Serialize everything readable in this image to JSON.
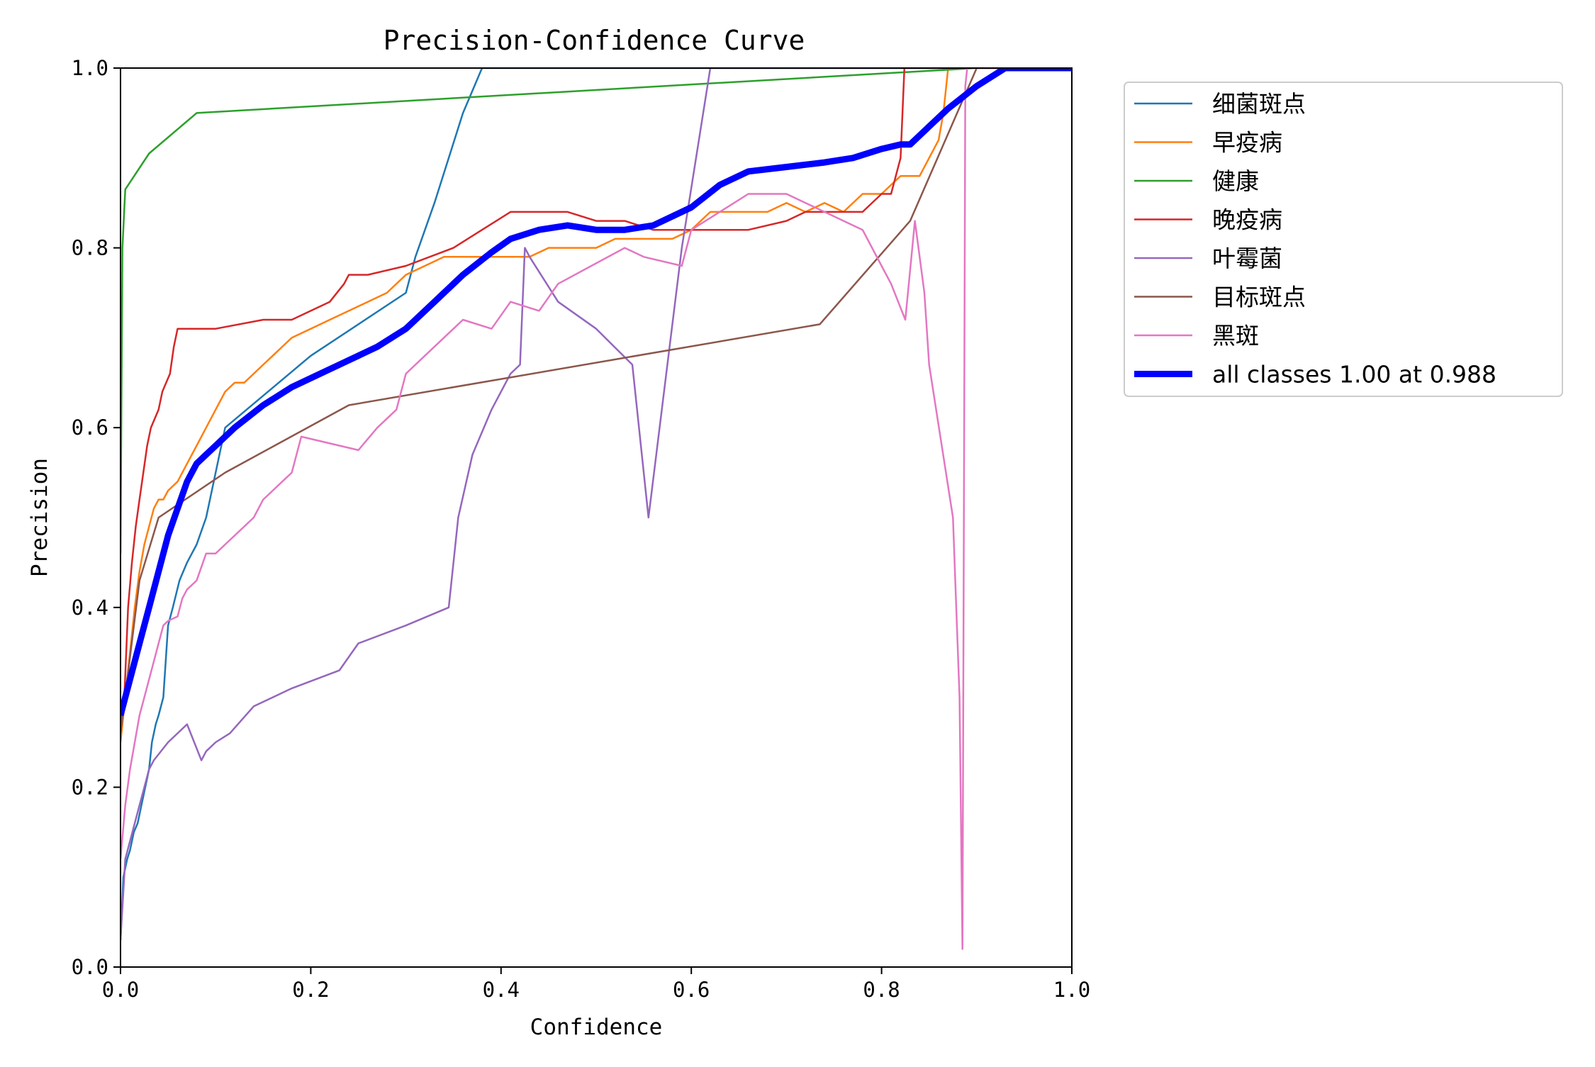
{
  "chart_data": {
    "type": "line",
    "title": "Precision-Confidence Curve",
    "xlabel": "Confidence",
    "ylabel": "Precision",
    "xlim": [
      0,
      1
    ],
    "ylim": [
      0,
      1
    ],
    "xticks": [
      "0.0",
      "0.2",
      "0.4",
      "0.6",
      "0.8",
      "1.0"
    ],
    "yticks": [
      "0.0",
      "0.2",
      "0.4",
      "0.6",
      "0.8",
      "1.0"
    ],
    "grid": false,
    "legend_position": "outside-top-right",
    "series": [
      {
        "name": "细菌斑点",
        "color": "#1f77b4",
        "width": 2.5,
        "x": [
          0.0,
          0.003,
          0.007,
          0.01,
          0.014,
          0.018,
          0.022,
          0.026,
          0.03,
          0.033,
          0.037,
          0.04,
          0.045,
          0.05,
          0.055,
          0.062,
          0.07,
          0.08,
          0.09,
          0.1,
          0.11,
          0.2,
          0.3,
          0.31,
          0.33,
          0.36,
          0.38,
          1.0
        ],
        "y": [
          0.03,
          0.1,
          0.12,
          0.13,
          0.15,
          0.16,
          0.18,
          0.2,
          0.22,
          0.25,
          0.27,
          0.28,
          0.3,
          0.38,
          0.4,
          0.43,
          0.45,
          0.47,
          0.5,
          0.55,
          0.6,
          0.68,
          0.75,
          0.79,
          0.85,
          0.95,
          1.0,
          1.0
        ]
      },
      {
        "name": "早疫病",
        "color": "#ff7f0e",
        "width": 2.5,
        "x": [
          0.0,
          0.005,
          0.01,
          0.015,
          0.02,
          0.025,
          0.03,
          0.035,
          0.04,
          0.045,
          0.05,
          0.06,
          0.07,
          0.08,
          0.09,
          0.1,
          0.11,
          0.12,
          0.13,
          0.14,
          0.15,
          0.16,
          0.17,
          0.18,
          0.2,
          0.22,
          0.24,
          0.26,
          0.28,
          0.3,
          0.32,
          0.34,
          0.36,
          0.38,
          0.4,
          0.43,
          0.45,
          0.48,
          0.5,
          0.52,
          0.55,
          0.58,
          0.6,
          0.62,
          0.64,
          0.66,
          0.68,
          0.7,
          0.72,
          0.74,
          0.76,
          0.78,
          0.8,
          0.82,
          0.84,
          0.86,
          0.865,
          0.87,
          1.0
        ],
        "y": [
          0.25,
          0.3,
          0.35,
          0.4,
          0.44,
          0.47,
          0.49,
          0.51,
          0.52,
          0.52,
          0.53,
          0.54,
          0.56,
          0.58,
          0.6,
          0.62,
          0.64,
          0.65,
          0.65,
          0.66,
          0.67,
          0.68,
          0.69,
          0.7,
          0.71,
          0.72,
          0.73,
          0.74,
          0.75,
          0.77,
          0.78,
          0.79,
          0.79,
          0.79,
          0.79,
          0.79,
          0.8,
          0.8,
          0.8,
          0.81,
          0.81,
          0.81,
          0.82,
          0.84,
          0.84,
          0.84,
          0.84,
          0.85,
          0.84,
          0.85,
          0.84,
          0.86,
          0.86,
          0.88,
          0.88,
          0.92,
          0.95,
          1.0,
          1.0
        ]
      },
      {
        "name": "健康",
        "color": "#2ca02c",
        "width": 2.5,
        "x": [
          0.0,
          0.002,
          0.005,
          0.03,
          0.08,
          0.9,
          1.0
        ],
        "y": [
          0.46,
          0.8,
          0.865,
          0.905,
          0.95,
          1.0,
          1.0
        ]
      },
      {
        "name": "晚疫病",
        "color": "#d62728",
        "width": 2.5,
        "x": [
          0.0,
          0.004,
          0.008,
          0.012,
          0.016,
          0.02,
          0.024,
          0.028,
          0.032,
          0.036,
          0.04,
          0.044,
          0.048,
          0.052,
          0.056,
          0.06,
          0.1,
          0.15,
          0.16,
          0.18,
          0.2,
          0.22,
          0.235,
          0.24,
          0.26,
          0.3,
          0.35,
          0.38,
          0.41,
          0.43,
          0.47,
          0.5,
          0.53,
          0.56,
          0.59,
          0.61,
          0.63,
          0.66,
          0.7,
          0.72,
          0.76,
          0.78,
          0.8,
          0.81,
          0.815,
          0.82,
          0.824,
          1.0
        ],
        "y": [
          0.27,
          0.3,
          0.4,
          0.45,
          0.49,
          0.52,
          0.55,
          0.58,
          0.6,
          0.61,
          0.62,
          0.64,
          0.65,
          0.66,
          0.69,
          0.71,
          0.71,
          0.72,
          0.72,
          0.72,
          0.73,
          0.74,
          0.76,
          0.77,
          0.77,
          0.78,
          0.8,
          0.82,
          0.84,
          0.84,
          0.84,
          0.83,
          0.83,
          0.82,
          0.82,
          0.82,
          0.82,
          0.82,
          0.83,
          0.84,
          0.84,
          0.84,
          0.86,
          0.86,
          0.88,
          0.9,
          1.0,
          1.0
        ]
      },
      {
        "name": "叶霉菌",
        "color": "#9467bd",
        "width": 2.5,
        "x": [
          0.0,
          0.005,
          0.01,
          0.015,
          0.02,
          0.025,
          0.03,
          0.035,
          0.05,
          0.07,
          0.085,
          0.09,
          0.1,
          0.115,
          0.14,
          0.18,
          0.23,
          0.25,
          0.3,
          0.345,
          0.35,
          0.355,
          0.37,
          0.39,
          0.41,
          0.42,
          0.425,
          0.43,
          0.46,
          0.5,
          0.538,
          0.555,
          0.59,
          0.62,
          1.0
        ],
        "y": [
          0.03,
          0.12,
          0.14,
          0.16,
          0.18,
          0.2,
          0.22,
          0.23,
          0.25,
          0.27,
          0.23,
          0.24,
          0.25,
          0.26,
          0.29,
          0.31,
          0.33,
          0.36,
          0.38,
          0.4,
          0.45,
          0.5,
          0.57,
          0.62,
          0.66,
          0.67,
          0.8,
          0.79,
          0.74,
          0.71,
          0.67,
          0.5,
          0.8,
          1.0,
          1.0
        ]
      },
      {
        "name": "目标斑点",
        "color": "#8c564b",
        "width": 2.5,
        "x": [
          0.0,
          0.02,
          0.04,
          0.11,
          0.24,
          0.735,
          0.83,
          0.9,
          1.0
        ],
        "y": [
          0.26,
          0.43,
          0.5,
          0.55,
          0.625,
          0.715,
          0.83,
          1.0,
          1.0
        ]
      },
      {
        "name": "黑斑",
        "color": "#e377c2",
        "width": 2.5,
        "x": [
          0.0,
          0.005,
          0.01,
          0.015,
          0.02,
          0.025,
          0.03,
          0.035,
          0.04,
          0.045,
          0.05,
          0.06,
          0.065,
          0.07,
          0.08,
          0.09,
          0.1,
          0.11,
          0.12,
          0.13,
          0.14,
          0.15,
          0.16,
          0.17,
          0.18,
          0.19,
          0.25,
          0.27,
          0.29,
          0.3,
          0.31,
          0.36,
          0.39,
          0.41,
          0.44,
          0.46,
          0.53,
          0.55,
          0.59,
          0.6,
          0.66,
          0.7,
          0.74,
          0.78,
          0.8,
          0.81,
          0.825,
          0.835,
          0.845,
          0.85,
          0.875,
          0.882,
          0.885,
          0.888,
          0.89,
          1.0
        ],
        "y": [
          0.12,
          0.18,
          0.22,
          0.25,
          0.28,
          0.3,
          0.32,
          0.34,
          0.36,
          0.38,
          0.385,
          0.39,
          0.41,
          0.42,
          0.43,
          0.46,
          0.46,
          0.47,
          0.48,
          0.49,
          0.5,
          0.52,
          0.53,
          0.54,
          0.55,
          0.59,
          0.575,
          0.6,
          0.62,
          0.66,
          0.67,
          0.72,
          0.71,
          0.74,
          0.73,
          0.76,
          0.8,
          0.79,
          0.78,
          0.82,
          0.86,
          0.86,
          0.84,
          0.82,
          0.78,
          0.76,
          0.72,
          0.83,
          0.75,
          0.67,
          0.5,
          0.3,
          0.02,
          0.98,
          1.0,
          1.0
        ]
      },
      {
        "name": "all classes 1.00 at 0.988",
        "color": "#0000ff",
        "width": 9,
        "x": [
          0.0,
          0.01,
          0.02,
          0.03,
          0.04,
          0.05,
          0.06,
          0.07,
          0.08,
          0.09,
          0.1,
          0.12,
          0.15,
          0.18,
          0.21,
          0.24,
          0.27,
          0.3,
          0.33,
          0.36,
          0.39,
          0.41,
          0.44,
          0.47,
          0.5,
          0.53,
          0.56,
          0.6,
          0.63,
          0.66,
          0.7,
          0.74,
          0.77,
          0.8,
          0.82,
          0.83,
          0.85,
          0.87,
          0.9,
          0.93,
          0.95,
          1.0
        ],
        "y": [
          0.28,
          0.32,
          0.36,
          0.4,
          0.44,
          0.48,
          0.51,
          0.54,
          0.56,
          0.57,
          0.58,
          0.6,
          0.625,
          0.645,
          0.66,
          0.675,
          0.69,
          0.71,
          0.74,
          0.77,
          0.795,
          0.81,
          0.82,
          0.825,
          0.82,
          0.82,
          0.825,
          0.845,
          0.87,
          0.885,
          0.89,
          0.895,
          0.9,
          0.91,
          0.915,
          0.915,
          0.935,
          0.955,
          0.98,
          1.0,
          1.0,
          1.0
        ]
      }
    ]
  }
}
